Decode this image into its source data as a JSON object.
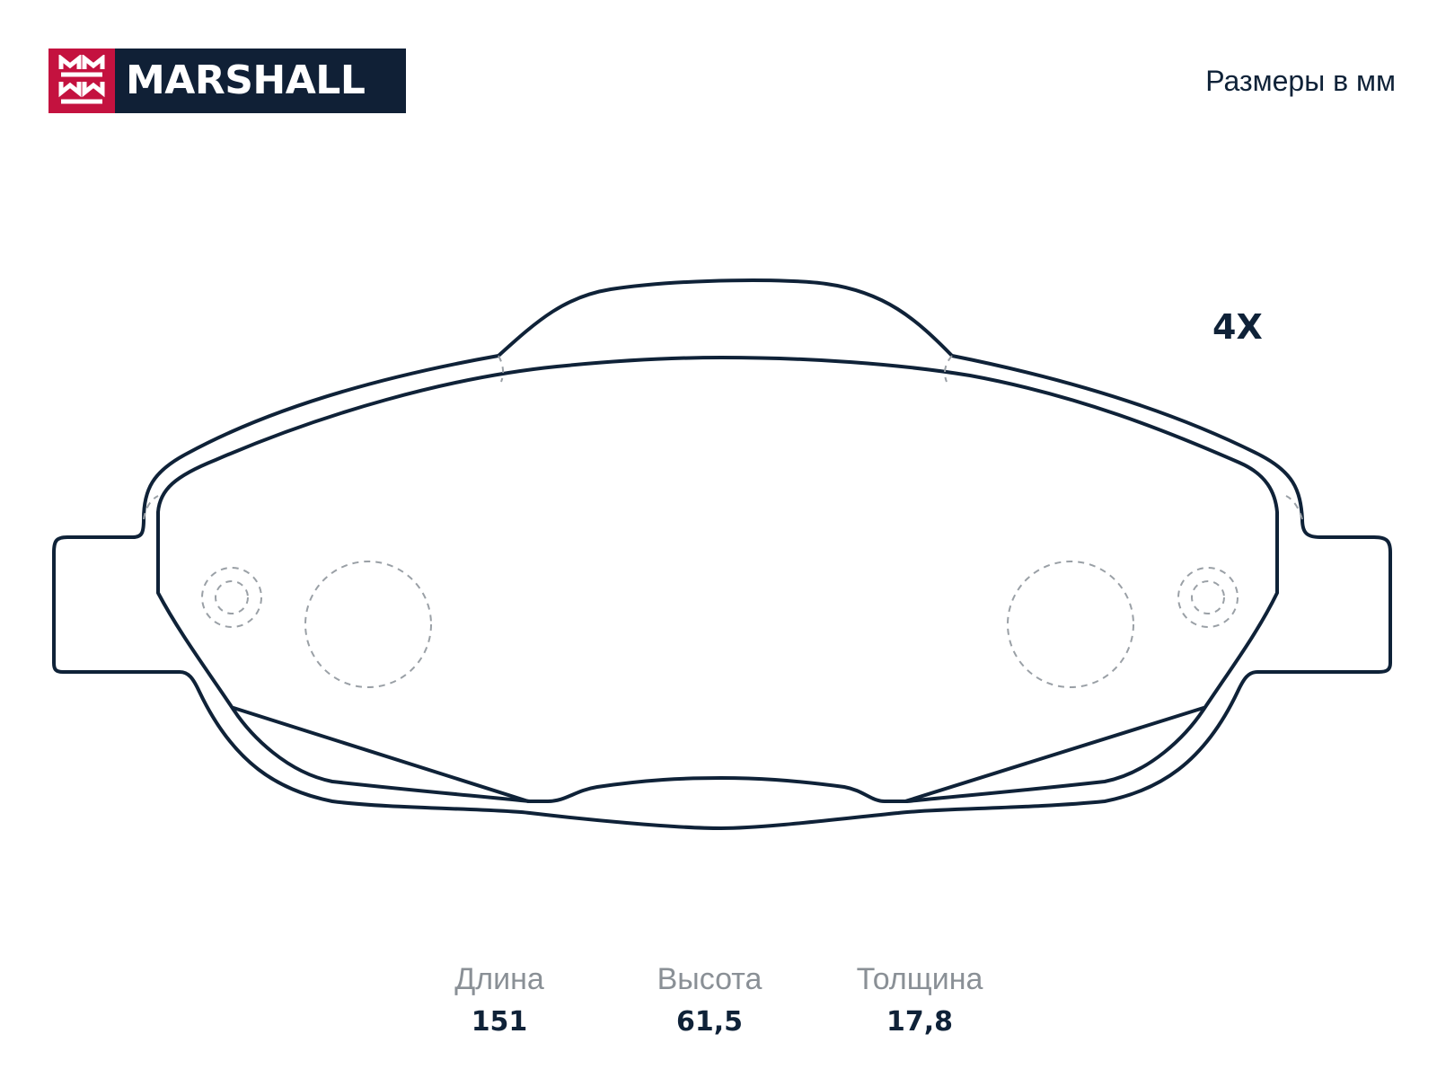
{
  "brand": {
    "name": "MARSHALL",
    "colors": {
      "mark": "#c4123f",
      "badge": "#102036"
    }
  },
  "units_label": "Размеры в мм",
  "quantity_label": "4X",
  "specs": [
    {
      "label": "Длина",
      "value": "151"
    },
    {
      "label": "Высота",
      "value": "61,5"
    },
    {
      "label": "Толщина",
      "value": "17,8"
    }
  ],
  "drawing": {
    "subject": "brake-pad-outline",
    "line_color": "#0f2238",
    "hidden_line_color": "#9aa0a6"
  }
}
